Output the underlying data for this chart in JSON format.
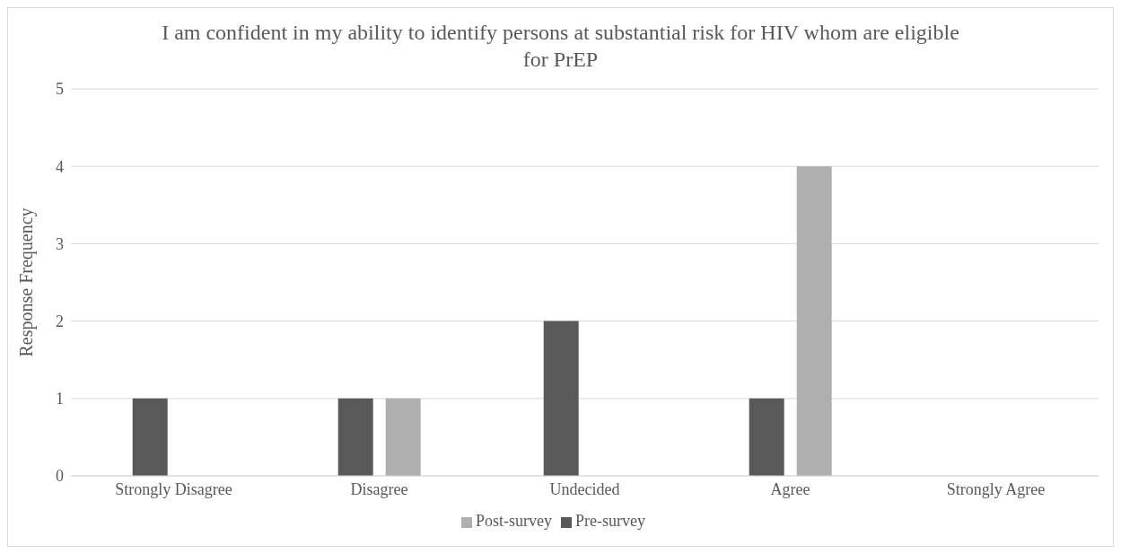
{
  "chart_data": {
    "type": "bar",
    "title": "I am confident in my ability to identify persons at substantial risk for HIV whom are eligible for PrEP",
    "ylabel": "Response Frequency",
    "categories": [
      "Strongly Disagree",
      "Disagree",
      "Undecided",
      "Agree",
      "Strongly Agree"
    ],
    "series": [
      {
        "name": "Pre-survey",
        "color": "#595959",
        "values": [
          1,
          1,
          2,
          1,
          0
        ]
      },
      {
        "name": "Post-survey",
        "color": "#afafaf",
        "values": [
          0,
          1,
          0,
          4,
          0
        ]
      }
    ],
    "ylim": [
      0,
      5
    ],
    "yticks": [
      0,
      1,
      2,
      3,
      4,
      5
    ],
    "grid": "y",
    "legend": "bottom"
  }
}
